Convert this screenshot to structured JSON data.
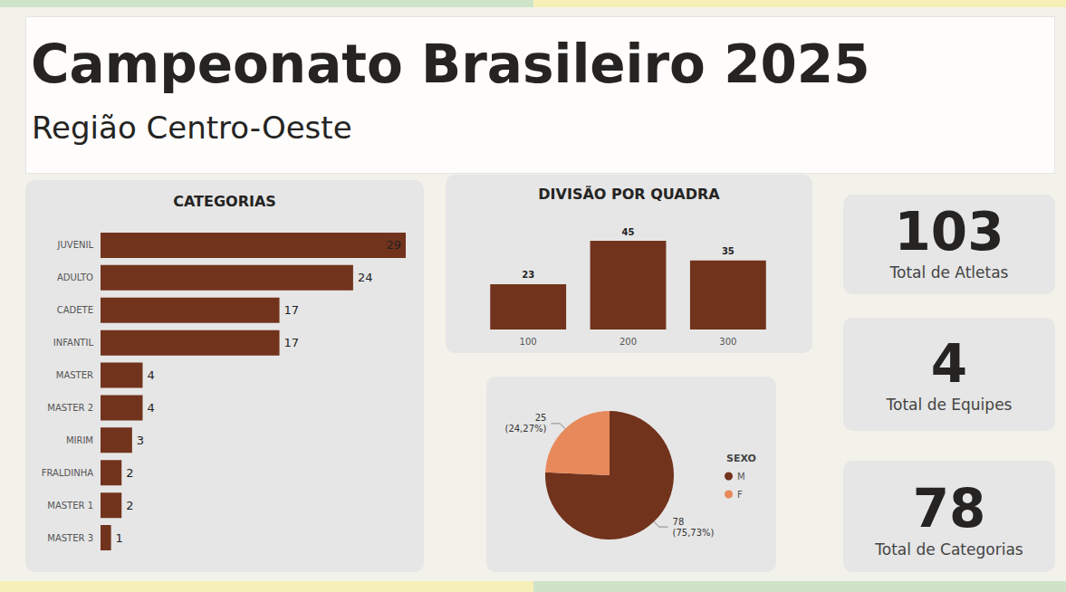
{
  "header": {
    "title": "Campeonato Brasileiro 2025",
    "subtitle": "Região Centro-Oeste"
  },
  "cards": [
    {
      "value": 103,
      "label": "Total de Atletas"
    },
    {
      "value": 4,
      "label": "Total de Equipes"
    },
    {
      "value": 78,
      "label": "Total de Categorias"
    }
  ],
  "chart_data": [
    {
      "type": "bar",
      "title": "CATEGORIAS",
      "orientation": "horizontal",
      "categories": [
        "JUVENIL",
        "ADULTO",
        "CADETE",
        "INFANTIL",
        "MASTER",
        "MASTER 2",
        "MIRIM",
        "FRALDINHA",
        "MASTER 1",
        "MASTER 3"
      ],
      "values": [
        29,
        24,
        17,
        17,
        4,
        4,
        3,
        2,
        2,
        1
      ],
      "color": "#72331d",
      "xlim": [
        0,
        29
      ],
      "data_labels": true,
      "tick_labels": "y",
      "grid": false
    },
    {
      "type": "bar",
      "title": "DIVISÃO POR QUADRA",
      "categories": [
        "100",
        "200",
        "300"
      ],
      "values": [
        23,
        45,
        35
      ],
      "color": "#72331d",
      "ylim": [
        0,
        45
      ],
      "data_labels": true,
      "tick_labels": "x",
      "grid": false
    },
    {
      "type": "pie",
      "legend_title": "SEXO",
      "categories": [
        "M",
        "F"
      ],
      "values": [
        78,
        25
      ],
      "value_labels": [
        "78\n(75,73%)",
        "25\n(24,27%)"
      ],
      "colors": [
        "#72331d",
        "#e8895b"
      ],
      "legend": "right",
      "data_labels": true
    }
  ]
}
